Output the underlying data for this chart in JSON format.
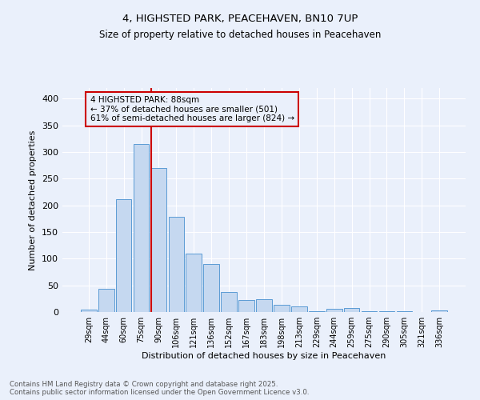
{
  "title_line1": "4, HIGHSTED PARK, PEACEHAVEN, BN10 7UP",
  "title_line2": "Size of property relative to detached houses in Peacehaven",
  "xlabel": "Distribution of detached houses by size in Peacehaven",
  "ylabel": "Number of detached properties",
  "categories": [
    "29sqm",
    "44sqm",
    "60sqm",
    "75sqm",
    "90sqm",
    "106sqm",
    "121sqm",
    "136sqm",
    "152sqm",
    "167sqm",
    "183sqm",
    "198sqm",
    "213sqm",
    "229sqm",
    "244sqm",
    "259sqm",
    "275sqm",
    "290sqm",
    "305sqm",
    "321sqm",
    "336sqm"
  ],
  "values": [
    5,
    43,
    212,
    315,
    270,
    178,
    110,
    90,
    38,
    23,
    24,
    14,
    11,
    2,
    6,
    7,
    1,
    1,
    1,
    0,
    3
  ],
  "bar_color": "#c5d8f0",
  "bar_edge_color": "#5b9bd5",
  "vline_color": "#cc0000",
  "vline_x_index": 3.55,
  "annotation_text": "4 HIGHSTED PARK: 88sqm\n← 37% of detached houses are smaller (501)\n61% of semi-detached houses are larger (824) →",
  "annotation_box_color": "#cc0000",
  "ylim": [
    0,
    420
  ],
  "yticks": [
    0,
    50,
    100,
    150,
    200,
    250,
    300,
    350,
    400
  ],
  "background_color": "#eaf0fb",
  "grid_color": "#ffffff",
  "footer_line1": "Contains HM Land Registry data © Crown copyright and database right 2025.",
  "footer_line2": "Contains public sector information licensed under the Open Government Licence v3.0."
}
